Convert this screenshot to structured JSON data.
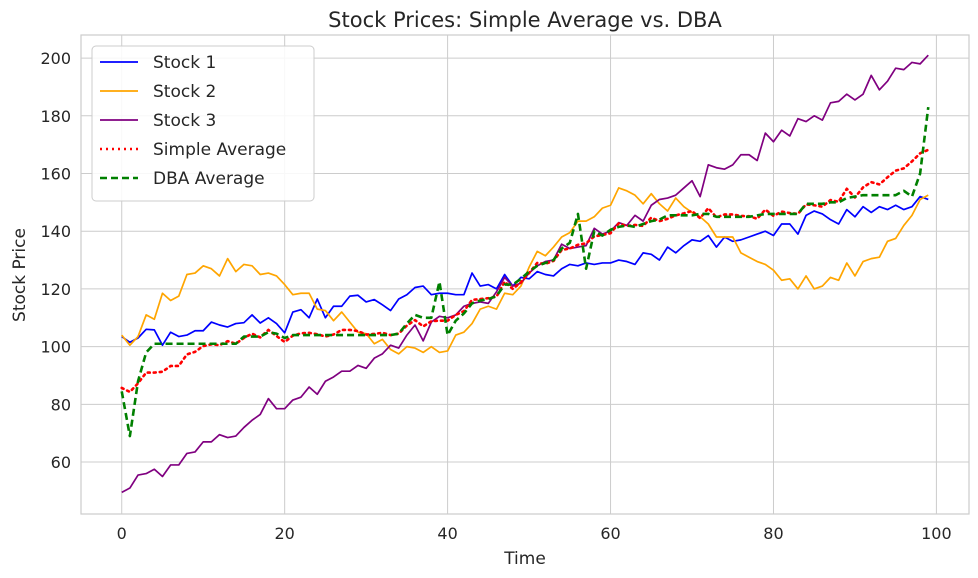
{
  "chart_data": {
    "type": "line",
    "title": "Stock Prices: Simple Average vs. DBA",
    "xlabel": "Time",
    "ylabel": "Stock Price",
    "xlim": [
      -5,
      104
    ],
    "ylim": [
      42,
      208
    ],
    "xticks": [
      0,
      20,
      40,
      60,
      80,
      100
    ],
    "yticks": [
      60,
      80,
      100,
      120,
      140,
      160,
      180,
      200
    ],
    "grid": true,
    "legend": "top-left",
    "x_start": 0,
    "x_step": 1,
    "series": [
      {
        "name": "Stock 1",
        "color": "#0000ff",
        "style": "solid",
        "values": [
          103.5,
          101.5,
          103.0,
          106.0,
          105.8,
          100.5,
          105.0,
          103.5,
          104.0,
          105.5,
          105.5,
          108.5,
          107.5,
          106.8,
          108.0,
          108.3,
          111.0,
          108.2,
          110.0,
          108.0,
          104.8,
          112.0,
          112.8,
          110.0,
          116.5,
          110.0,
          114.0,
          114.0,
          117.5,
          117.8,
          115.5,
          116.3,
          114.5,
          112.5,
          116.5,
          118.0,
          120.5,
          121.0,
          118.0,
          118.5,
          118.5,
          118.0,
          118.0,
          125.5,
          121.0,
          121.5,
          120.0,
          125.0,
          121.0,
          124.0,
          123.5,
          126.0,
          125.0,
          124.5,
          127.0,
          128.5,
          128.0,
          129.0,
          128.5,
          129.0,
          129.0,
          130.0,
          129.5,
          128.5,
          132.5,
          132.0,
          130.0,
          134.5,
          132.5,
          135.0,
          137.0,
          136.5,
          138.5,
          134.5,
          138.0,
          136.5,
          137.0,
          138.0,
          139.0,
          140.0,
          138.5,
          142.5,
          142.5,
          139.0,
          145.5,
          147.0,
          146.0,
          144.0,
          142.5,
          147.5,
          145.0,
          148.5,
          146.5,
          148.5,
          147.5,
          149.0,
          147.5,
          148.5,
          152.0,
          151.0
        ]
      },
      {
        "name": "Stock 2",
        "color": "#ffa500",
        "style": "solid",
        "values": [
          104.0,
          100.5,
          103.5,
          111.0,
          109.5,
          118.5,
          116.0,
          117.5,
          125.0,
          125.5,
          128.0,
          127.0,
          124.5,
          130.5,
          126.0,
          128.5,
          128.0,
          125.0,
          125.5,
          124.5,
          121.5,
          118.0,
          118.5,
          118.5,
          113.0,
          112.5,
          109.0,
          112.0,
          108.5,
          105.0,
          104.5,
          101.0,
          102.5,
          99.0,
          97.5,
          100.0,
          99.5,
          98.0,
          100.0,
          98.0,
          98.5,
          104.0,
          105.0,
          108.0,
          113.0,
          114.0,
          113.0,
          118.5,
          118.0,
          121.0,
          127.5,
          133.0,
          131.5,
          134.5,
          138.0,
          139.5,
          143.5,
          143.5,
          145.0,
          148.0,
          149.0,
          155.0,
          154.0,
          152.5,
          149.5,
          153.0,
          149.5,
          147.0,
          151.5,
          148.5,
          146.5,
          145.0,
          142.5,
          138.0,
          138.0,
          138.0,
          132.5,
          131.0,
          129.5,
          128.5,
          126.5,
          123.0,
          123.5,
          120.0,
          124.5,
          120.0,
          121.0,
          124.0,
          123.0,
          129.0,
          124.5,
          129.5,
          130.5,
          131.0,
          136.5,
          137.5,
          142.0,
          145.5,
          151.0,
          152.5
        ]
      },
      {
        "name": "Stock 3",
        "color": "#800080",
        "style": "solid",
        "values": [
          49.5,
          51.0,
          55.5,
          56.0,
          57.5,
          55.0,
          59.0,
          59.0,
          63.0,
          63.5,
          67.0,
          67.0,
          69.5,
          68.5,
          69.0,
          72.0,
          74.5,
          76.5,
          82.0,
          78.5,
          78.5,
          81.5,
          82.5,
          86.0,
          83.5,
          88.0,
          89.5,
          91.5,
          91.5,
          93.5,
          92.5,
          96.0,
          97.5,
          100.5,
          99.5,
          104.0,
          107.5,
          102.0,
          108.5,
          110.5,
          110.0,
          111.0,
          114.0,
          115.0,
          115.5,
          115.0,
          119.0,
          124.0,
          121.0,
          122.0,
          125.5,
          128.0,
          129.5,
          130.0,
          135.5,
          134.0,
          134.5,
          135.0,
          141.0,
          139.0,
          140.0,
          143.0,
          142.0,
          145.5,
          143.5,
          149.0,
          151.0,
          151.5,
          152.5,
          155.0,
          157.5,
          152.0,
          163.0,
          162.0,
          161.5,
          163.0,
          166.5,
          166.5,
          164.5,
          174.0,
          171.0,
          175.0,
          173.0,
          179.0,
          178.0,
          180.0,
          178.5,
          184.5,
          185.0,
          187.5,
          185.5,
          187.5,
          194.0,
          189.0,
          192.0,
          196.5,
          196.0,
          198.5,
          198.0,
          201.0
        ]
      },
      {
        "name": "Simple Average",
        "color": "#ff0000",
        "style": "dotted",
        "values": [
          85.7,
          84.3,
          87.3,
          91.0,
          91.0,
          91.3,
          93.3,
          93.3,
          97.3,
          98.2,
          100.2,
          100.8,
          100.5,
          101.9,
          101.0,
          103.0,
          104.5,
          103.2,
          105.8,
          103.7,
          101.6,
          103.8,
          104.6,
          104.8,
          104.3,
          103.5,
          104.2,
          105.8,
          105.8,
          105.4,
          104.2,
          104.4,
          104.8,
          104.0,
          104.5,
          107.3,
          109.2,
          107.0,
          108.8,
          109.0,
          109.0,
          111.0,
          112.3,
          116.2,
          116.5,
          116.8,
          117.3,
          122.5,
          120.0,
          122.3,
          125.5,
          129.0,
          128.7,
          129.7,
          133.5,
          134.0,
          135.3,
          135.8,
          138.2,
          138.7,
          139.3,
          142.7,
          141.8,
          142.2,
          141.8,
          144.7,
          143.5,
          144.3,
          145.5,
          146.2,
          147.0,
          144.5,
          148.0,
          144.8,
          145.8,
          145.8,
          145.3,
          145.2,
          144.3,
          147.5,
          145.3,
          146.8,
          146.3,
          146.0,
          149.3,
          149.0,
          148.5,
          150.8,
          150.2,
          154.7,
          151.7,
          155.2,
          157.0,
          156.2,
          158.7,
          161.0,
          161.8,
          164.2,
          167.0,
          168.2
        ]
      },
      {
        "name": "DBA Average",
        "color": "#008000",
        "style": "dashed",
        "values": [
          84.5,
          69.0,
          88.0,
          98.0,
          101.0,
          101.0,
          101.0,
          101.0,
          101.0,
          101.0,
          101.0,
          101.0,
          101.0,
          101.0,
          101.0,
          103.5,
          103.5,
          103.5,
          105.0,
          104.5,
          103.0,
          104.0,
          104.0,
          104.0,
          104.0,
          104.0,
          104.0,
          104.0,
          104.0,
          104.0,
          104.0,
          104.0,
          104.0,
          104.0,
          104.5,
          108.0,
          111.0,
          110.0,
          110.0,
          122.5,
          104.0,
          109.0,
          111.5,
          115.0,
          116.0,
          116.5,
          117.5,
          121.5,
          121.5,
          123.5,
          126.0,
          128.0,
          129.0,
          130.0,
          134.0,
          136.0,
          146.0,
          127.0,
          140.0,
          138.5,
          140.5,
          141.5,
          142.0,
          141.5,
          142.5,
          143.5,
          144.0,
          145.5,
          145.5,
          145.5,
          145.5,
          146.0,
          146.0,
          145.0,
          145.0,
          145.0,
          145.0,
          145.0,
          145.5,
          146.0,
          146.0,
          146.0,
          146.0,
          146.0,
          149.5,
          149.5,
          149.5,
          150.0,
          150.0,
          151.5,
          152.0,
          152.5,
          152.5,
          152.5,
          152.5,
          152.5,
          154.0,
          152.0,
          160.0,
          183.0
        ]
      }
    ]
  }
}
